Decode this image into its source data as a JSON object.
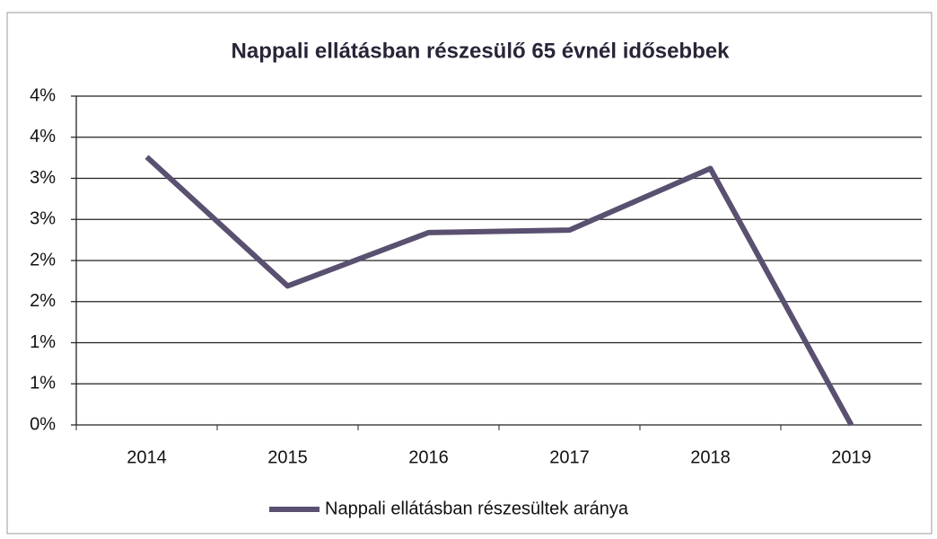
{
  "chart_data": {
    "type": "line",
    "title": "Nappali ellátásban részesülő 65 évnél idősebbek",
    "categories": [
      "2014",
      "2015",
      "2016",
      "2017",
      "2018",
      "2019"
    ],
    "series": [
      {
        "name": "Nappali ellátásban részesültek aránya",
        "color": "#5a5070",
        "values": [
          3.26,
          1.69,
          2.34,
          2.37,
          3.12,
          0
        ]
      }
    ],
    "ylim": [
      0,
      4
    ],
    "yticks": [
      {
        "value": 0,
        "label": "0%"
      },
      {
        "value": 0.5,
        "label": "1%"
      },
      {
        "value": 1,
        "label": "1%"
      },
      {
        "value": 1.5,
        "label": "2%"
      },
      {
        "value": 2,
        "label": "2%"
      },
      {
        "value": 2.5,
        "label": "3%"
      },
      {
        "value": 3,
        "label": "3%"
      },
      {
        "value": 3.5,
        "label": "4%"
      },
      {
        "value": 4,
        "label": "4%"
      }
    ],
    "grid": true,
    "legend": "bottom"
  }
}
